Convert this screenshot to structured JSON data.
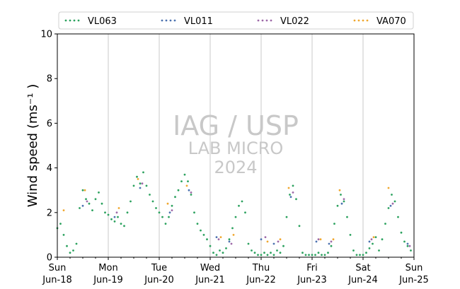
{
  "chart_data": {
    "type": "scatter",
    "ylabel": "Wind speed (ms⁻¹ )",
    "ylim": [
      0,
      10
    ],
    "yticks": [
      0,
      2,
      4,
      6,
      8,
      10
    ],
    "xlim": [
      "2023-06-18T00:00",
      "2023-06-25T00:00"
    ],
    "xticks": [
      {
        "date": "2023-06-18",
        "day": "Sun",
        "date_label": "Jun-18"
      },
      {
        "date": "2023-06-19",
        "day": "Mon",
        "date_label": "Jun-19"
      },
      {
        "date": "2023-06-20",
        "day": "Tue",
        "date_label": "Jun-20"
      },
      {
        "date": "2023-06-21",
        "day": "Wed",
        "date_label": "Jun-21"
      },
      {
        "date": "2023-06-22",
        "day": "Thu",
        "date_label": "Jun-22"
      },
      {
        "date": "2023-06-23",
        "day": "Fri",
        "date_label": "Jun-23"
      },
      {
        "date": "2023-06-24",
        "day": "Sat",
        "date_label": "Jun-24"
      },
      {
        "date": "2023-06-25",
        "day": "Sun",
        "date_label": "Jun-25"
      }
    ],
    "grid": "vertical",
    "legend_position": "top",
    "watermark": {
      "line1": "IAG / USP",
      "line2": "LAB MICRO",
      "line3": "2024"
    },
    "series": [
      {
        "name": "VL063",
        "color": "#2ca25f",
        "points": [
          {
            "x": "2023-06-18T00:00",
            "y": 1.3
          },
          {
            "x": "2023-06-18T01:30",
            "y": 1.5
          },
          {
            "x": "2023-06-18T03:00",
            "y": 1.0
          },
          {
            "x": "2023-06-18T04:30",
            "y": 0.5
          },
          {
            "x": "2023-06-18T06:00",
            "y": 0.2
          },
          {
            "x": "2023-06-18T07:30",
            "y": 0.3
          },
          {
            "x": "2023-06-18T09:00",
            "y": 0.6
          },
          {
            "x": "2023-06-18T10:30",
            "y": 2.2
          },
          {
            "x": "2023-06-18T12:00",
            "y": 3.0
          },
          {
            "x": "2023-06-18T13:30",
            "y": 2.6
          },
          {
            "x": "2023-06-18T15:00",
            "y": 2.4
          },
          {
            "x": "2023-06-18T16:30",
            "y": 2.1
          },
          {
            "x": "2023-06-18T18:00",
            "y": 2.6
          },
          {
            "x": "2023-06-18T19:30",
            "y": 2.9
          },
          {
            "x": "2023-06-18T21:00",
            "y": 2.4
          },
          {
            "x": "2023-06-18T22:30",
            "y": 2.0
          },
          {
            "x": "2023-06-19T00:00",
            "y": 1.9
          },
          {
            "x": "2023-06-19T01:30",
            "y": 1.7
          },
          {
            "x": "2023-06-19T03:00",
            "y": 1.6
          },
          {
            "x": "2023-06-19T04:30",
            "y": 1.8
          },
          {
            "x": "2023-06-19T06:00",
            "y": 1.5
          },
          {
            "x": "2023-06-19T07:30",
            "y": 1.4
          },
          {
            "x": "2023-06-19T09:00",
            "y": 2.0
          },
          {
            "x": "2023-06-19T10:30",
            "y": 2.5
          },
          {
            "x": "2023-06-19T12:00",
            "y": 3.2
          },
          {
            "x": "2023-06-19T13:30",
            "y": 3.6
          },
          {
            "x": "2023-06-19T15:00",
            "y": 3.3
          },
          {
            "x": "2023-06-19T16:30",
            "y": 3.8
          },
          {
            "x": "2023-06-19T18:00",
            "y": 3.2
          },
          {
            "x": "2023-06-19T19:30",
            "y": 2.8
          },
          {
            "x": "2023-06-19T21:00",
            "y": 2.5
          },
          {
            "x": "2023-06-19T22:30",
            "y": 2.2
          },
          {
            "x": "2023-06-20T00:00",
            "y": 2.0
          },
          {
            "x": "2023-06-20T01:30",
            "y": 1.8
          },
          {
            "x": "2023-06-20T03:00",
            "y": 1.5
          },
          {
            "x": "2023-06-20T04:30",
            "y": 1.8
          },
          {
            "x": "2023-06-20T06:00",
            "y": 2.3
          },
          {
            "x": "2023-06-20T07:30",
            "y": 2.7
          },
          {
            "x": "2023-06-20T09:00",
            "y": 3.0
          },
          {
            "x": "2023-06-20T10:30",
            "y": 3.4
          },
          {
            "x": "2023-06-20T12:00",
            "y": 3.7
          },
          {
            "x": "2023-06-20T13:30",
            "y": 3.4
          },
          {
            "x": "2023-06-20T15:00",
            "y": 2.8
          },
          {
            "x": "2023-06-20T16:30",
            "y": 2.0
          },
          {
            "x": "2023-06-20T18:00",
            "y": 1.5
          },
          {
            "x": "2023-06-20T19:30",
            "y": 1.2
          },
          {
            "x": "2023-06-20T21:00",
            "y": 1.0
          },
          {
            "x": "2023-06-20T22:30",
            "y": 0.8
          },
          {
            "x": "2023-06-21T00:00",
            "y": 0.5
          },
          {
            "x": "2023-06-21T01:30",
            "y": 0.2
          },
          {
            "x": "2023-06-21T03:00",
            "y": 0.1
          },
          {
            "x": "2023-06-21T04:30",
            "y": 0.3
          },
          {
            "x": "2023-06-21T06:00",
            "y": 0.2
          },
          {
            "x": "2023-06-21T07:30",
            "y": 0.4
          },
          {
            "x": "2023-06-21T09:00",
            "y": 0.8
          },
          {
            "x": "2023-06-21T10:30",
            "y": 1.3
          },
          {
            "x": "2023-06-21T12:00",
            "y": 1.8
          },
          {
            "x": "2023-06-21T13:30",
            "y": 2.3
          },
          {
            "x": "2023-06-21T15:00",
            "y": 2.5
          },
          {
            "x": "2023-06-21T16:30",
            "y": 2.0
          },
          {
            "x": "2023-06-21T18:00",
            "y": 0.6
          },
          {
            "x": "2023-06-21T19:30",
            "y": 0.3
          },
          {
            "x": "2023-06-21T21:00",
            "y": 0.2
          },
          {
            "x": "2023-06-21T22:30",
            "y": 0.1
          },
          {
            "x": "2023-06-22T00:00",
            "y": 0.1
          },
          {
            "x": "2023-06-22T01:30",
            "y": 0.2
          },
          {
            "x": "2023-06-22T03:00",
            "y": 0.1
          },
          {
            "x": "2023-06-22T04:30",
            "y": 0.2
          },
          {
            "x": "2023-06-22T06:00",
            "y": 0.1
          },
          {
            "x": "2023-06-22T07:30",
            "y": 0.3
          },
          {
            "x": "2023-06-22T09:00",
            "y": 0.2
          },
          {
            "x": "2023-06-22T10:30",
            "y": 0.5
          },
          {
            "x": "2023-06-22T12:00",
            "y": 1.8
          },
          {
            "x": "2023-06-22T13:30",
            "y": 2.8
          },
          {
            "x": "2023-06-22T15:00",
            "y": 3.2
          },
          {
            "x": "2023-06-22T16:30",
            "y": 2.6
          },
          {
            "x": "2023-06-22T18:00",
            "y": 1.4
          },
          {
            "x": "2023-06-22T19:30",
            "y": 0.2
          },
          {
            "x": "2023-06-22T21:00",
            "y": 0.1
          },
          {
            "x": "2023-06-22T22:30",
            "y": 0.1
          },
          {
            "x": "2023-06-23T00:00",
            "y": 0.1
          },
          {
            "x": "2023-06-23T01:30",
            "y": 0.1
          },
          {
            "x": "2023-06-23T03:00",
            "y": 0.2
          },
          {
            "x": "2023-06-23T04:30",
            "y": 0.1
          },
          {
            "x": "2023-06-23T06:00",
            "y": 0.1
          },
          {
            "x": "2023-06-23T07:30",
            "y": 0.2
          },
          {
            "x": "2023-06-23T09:00",
            "y": 0.5
          },
          {
            "x": "2023-06-23T10:30",
            "y": 1.5
          },
          {
            "x": "2023-06-23T12:00",
            "y": 2.3
          },
          {
            "x": "2023-06-23T13:30",
            "y": 2.8
          },
          {
            "x": "2023-06-23T15:00",
            "y": 2.5
          },
          {
            "x": "2023-06-23T16:30",
            "y": 1.8
          },
          {
            "x": "2023-06-23T18:00",
            "y": 1.0
          },
          {
            "x": "2023-06-23T19:30",
            "y": 0.3
          },
          {
            "x": "2023-06-23T21:00",
            "y": 0.1
          },
          {
            "x": "2023-06-23T22:30",
            "y": 0.1
          },
          {
            "x": "2023-06-24T00:00",
            "y": 0.1
          },
          {
            "x": "2023-06-24T01:30",
            "y": 0.2
          },
          {
            "x": "2023-06-24T03:00",
            "y": 0.4
          },
          {
            "x": "2023-06-24T04:30",
            "y": 0.6
          },
          {
            "x": "2023-06-24T06:00",
            "y": 0.9
          },
          {
            "x": "2023-06-24T07:30",
            "y": 0.3
          },
          {
            "x": "2023-06-24T09:00",
            "y": 0.8
          },
          {
            "x": "2023-06-24T10:30",
            "y": 1.5
          },
          {
            "x": "2023-06-24T12:00",
            "y": 2.2
          },
          {
            "x": "2023-06-24T13:30",
            "y": 2.8
          },
          {
            "x": "2023-06-24T15:00",
            "y": 2.5
          },
          {
            "x": "2023-06-24T16:30",
            "y": 1.8
          },
          {
            "x": "2023-06-24T18:00",
            "y": 1.1
          },
          {
            "x": "2023-06-24T19:30",
            "y": 0.7
          },
          {
            "x": "2023-06-24T21:00",
            "y": 0.5
          },
          {
            "x": "2023-06-24T22:30",
            "y": 0.3
          }
        ]
      },
      {
        "name": "VL011",
        "color": "#4c72b0",
        "points": [
          {
            "x": "2023-06-18T12:00",
            "y": 2.3
          },
          {
            "x": "2023-06-19T03:00",
            "y": 1.8
          },
          {
            "x": "2023-06-19T15:00",
            "y": 3.1
          },
          {
            "x": "2023-06-20T05:00",
            "y": 2.0
          },
          {
            "x": "2023-06-20T14:00",
            "y": 3.0
          },
          {
            "x": "2023-06-21T03:00",
            "y": 0.9
          },
          {
            "x": "2023-06-21T09:00",
            "y": 0.7
          },
          {
            "x": "2023-06-22T00:00",
            "y": 0.8
          },
          {
            "x": "2023-06-22T06:00",
            "y": 0.6
          },
          {
            "x": "2023-06-22T14:00",
            "y": 2.7
          },
          {
            "x": "2023-06-23T02:00",
            "y": 0.7
          },
          {
            "x": "2023-06-23T08:00",
            "y": 0.6
          },
          {
            "x": "2023-06-23T14:00",
            "y": 2.4
          },
          {
            "x": "2023-06-24T03:00",
            "y": 0.7
          },
          {
            "x": "2023-06-24T13:00",
            "y": 2.3
          },
          {
            "x": "2023-06-24T21:00",
            "y": 0.6
          }
        ]
      },
      {
        "name": "VL022",
        "color": "#9e6aa8",
        "points": [
          {
            "x": "2023-06-18T14:00",
            "y": 2.5
          },
          {
            "x": "2023-06-19T04:00",
            "y": 2.0
          },
          {
            "x": "2023-06-19T16:00",
            "y": 3.3
          },
          {
            "x": "2023-06-20T06:00",
            "y": 2.1
          },
          {
            "x": "2023-06-20T15:00",
            "y": 2.9
          },
          {
            "x": "2023-06-21T04:00",
            "y": 0.8
          },
          {
            "x": "2023-06-21T10:00",
            "y": 0.6
          },
          {
            "x": "2023-06-22T02:00",
            "y": 0.9
          },
          {
            "x": "2023-06-22T08:00",
            "y": 0.7
          },
          {
            "x": "2023-06-22T15:00",
            "y": 2.9
          },
          {
            "x": "2023-06-23T03:00",
            "y": 0.8
          },
          {
            "x": "2023-06-23T09:00",
            "y": 0.7
          },
          {
            "x": "2023-06-23T15:00",
            "y": 2.6
          },
          {
            "x": "2023-06-24T04:00",
            "y": 0.8
          },
          {
            "x": "2023-06-24T14:00",
            "y": 2.4
          },
          {
            "x": "2023-06-24T22:00",
            "y": 0.5
          }
        ]
      },
      {
        "name": "VA070",
        "color": "#f0a830",
        "points": [
          {
            "x": "2023-06-18T03:00",
            "y": 2.1
          },
          {
            "x": "2023-06-18T13:00",
            "y": 3.0
          },
          {
            "x": "2023-06-19T05:00",
            "y": 2.2
          },
          {
            "x": "2023-06-19T14:00",
            "y": 3.5
          },
          {
            "x": "2023-06-20T04:00",
            "y": 2.4
          },
          {
            "x": "2023-06-20T13:00",
            "y": 3.2
          },
          {
            "x": "2023-06-21T05:00",
            "y": 0.9
          },
          {
            "x": "2023-06-21T11:00",
            "y": 1.0
          },
          {
            "x": "2023-06-22T03:00",
            "y": 0.7
          },
          {
            "x": "2023-06-22T09:00",
            "y": 0.8
          },
          {
            "x": "2023-06-22T13:00",
            "y": 3.1
          },
          {
            "x": "2023-06-23T04:00",
            "y": 0.8
          },
          {
            "x": "2023-06-23T10:00",
            "y": 0.8
          },
          {
            "x": "2023-06-23T13:00",
            "y": 3.0
          },
          {
            "x": "2023-06-24T05:00",
            "y": 0.9
          },
          {
            "x": "2023-06-24T12:00",
            "y": 3.1
          }
        ]
      }
    ]
  }
}
